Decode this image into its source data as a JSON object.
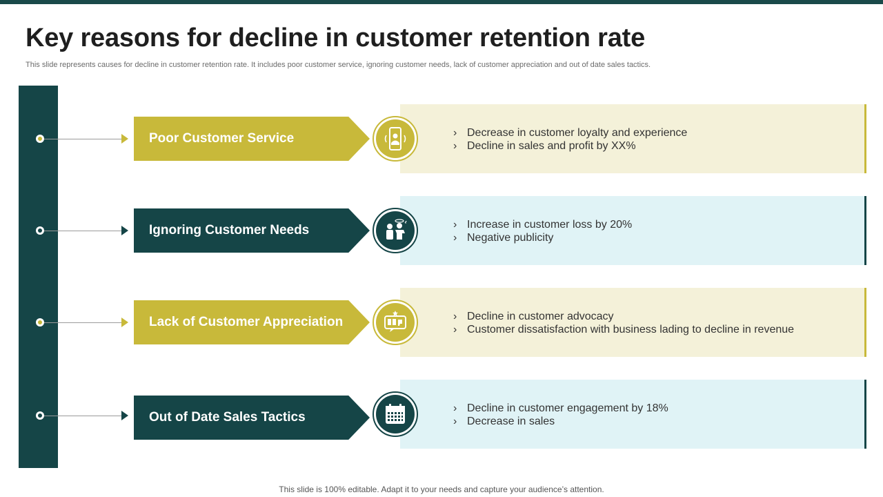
{
  "slide": {
    "title": "Key reasons for decline in customer retention rate",
    "subtitle": "This slide represents causes for decline in customer retention rate. It includes poor customer service, ignoring customer needs, lack of customer appreciation and out of date sales tactics.",
    "footer": "This slide is 100% editable. Adapt it to your needs and capture your audience’s attention."
  },
  "colors": {
    "dark_teal": "#154547",
    "gold": "#c8b93a",
    "cream": "#f4f1d9",
    "light_blue": "#e0f3f6"
  },
  "reasons": [
    {
      "label": "Poor Customer Service",
      "icon": "customer-service-phone-icon",
      "points": [
        "Decrease in customer  loyalty  and experience",
        "Decline in sales and profit by XX%"
      ]
    },
    {
      "label": "Ignoring Customer Needs",
      "icon": "customer-complaint-icon",
      "points": [
        "Increase  in customer  loss by 20%",
        "Negative publicity"
      ]
    },
    {
      "label": "Lack of Customer Appreciation",
      "icon": "feedback-thumbs-down-icon",
      "points": [
        "Decline in customer advocacy",
        "Customer dissatisfaction with business lading to decline in revenue"
      ]
    },
    {
      "label": "Out of Date Sales Tactics",
      "icon": "calendar-icon",
      "points": [
        "Decline in customer engagement by 18%",
        "Decrease in sales"
      ]
    }
  ]
}
